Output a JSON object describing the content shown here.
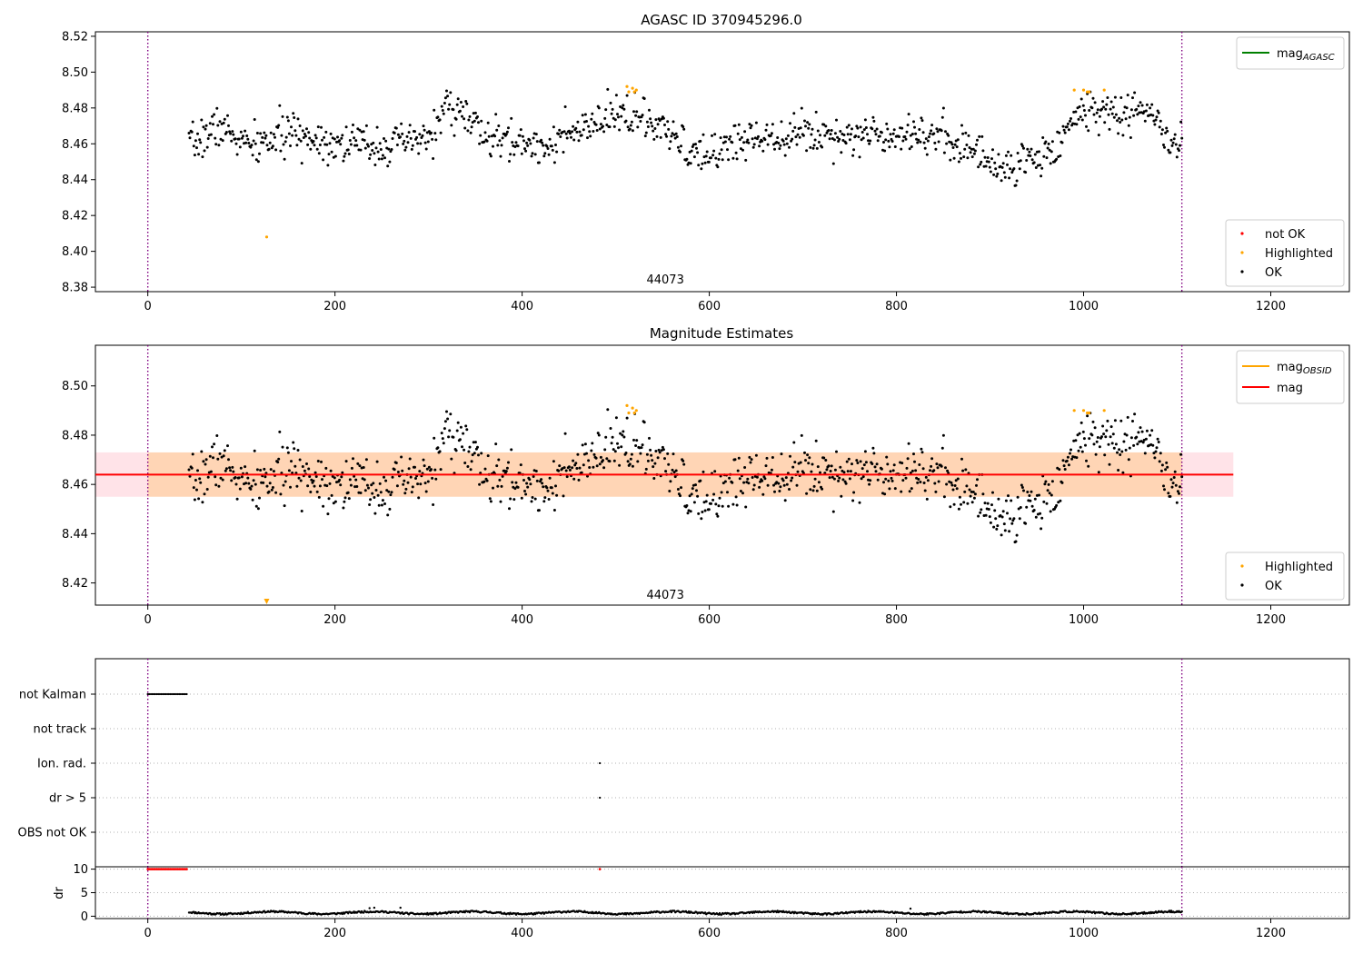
{
  "chart_data": [
    {
      "type": "scatter",
      "title": "AGASC ID 370945296.0",
      "xlim": [
        -56,
        1284
      ],
      "ylim": [
        8.3775,
        8.5225
      ],
      "xticks": [
        0,
        200,
        400,
        600,
        800,
        1000,
        1200
      ],
      "yticks": [
        8.38,
        8.4,
        8.42,
        8.44,
        8.46,
        8.48,
        8.5,
        8.52
      ],
      "ytick_decimals": 2,
      "grid": false,
      "vlines": [
        0,
        1105
      ],
      "annotation": {
        "text": "44073",
        "x": 553,
        "y": 8.382
      },
      "line_legend": {
        "placement": "top-right",
        "entries": [
          {
            "label": "mag",
            "sub": "AGASC",
            "color": "#008000"
          }
        ]
      },
      "marker_legend": {
        "placement": "bottom-right",
        "entries": [
          {
            "label": "not OK",
            "color": "#ff0000"
          },
          {
            "label": "Highlighted",
            "color": "#ffa500"
          },
          {
            "label": "OK",
            "color": "#000000"
          }
        ]
      },
      "points_ok": {
        "x_start": 44,
        "x_end": 1105,
        "count": 1030,
        "seed": 7
      },
      "highlighted": [
        [
          127,
          8.408
        ],
        [
          512,
          8.492
        ],
        [
          514,
          8.489
        ],
        [
          518,
          8.491
        ],
        [
          520,
          8.489
        ],
        [
          522,
          8.49
        ],
        [
          990,
          8.49
        ],
        [
          1000,
          8.49
        ],
        [
          1004,
          8.489
        ],
        [
          1006,
          8.489
        ],
        [
          1022,
          8.49
        ]
      ]
    },
    {
      "type": "scatter",
      "title": "Magnitude Estimates",
      "xlim": [
        -56,
        1284
      ],
      "ylim": [
        8.411,
        8.5165
      ],
      "xticks": [
        0,
        200,
        400,
        600,
        800,
        1000,
        1200
      ],
      "yticks": [
        8.42,
        8.44,
        8.46,
        8.48,
        8.5
      ],
      "ytick_decimals": 2,
      "grid": false,
      "vlines": [
        0,
        1105
      ],
      "annotation": {
        "text": "44073",
        "x": 553,
        "y": 8.4135
      },
      "mean_line": {
        "y": 8.464,
        "x": [
          -56,
          1160
        ],
        "color": "#ff0000"
      },
      "band_pink": {
        "y": [
          8.455,
          8.473
        ],
        "x": [
          -56,
          1160
        ]
      },
      "band_orange": {
        "y": [
          8.455,
          8.473
        ],
        "x": [
          0,
          1105
        ]
      },
      "line_legend": {
        "placement": "top-right",
        "entries": [
          {
            "label": "mag",
            "sub": "OBSID",
            "color": "#ffa500"
          },
          {
            "label": "mag",
            "sub": "",
            "color": "#ff0000"
          }
        ]
      },
      "marker_legend": {
        "placement": "bottom-right",
        "entries": [
          {
            "label": "Highlighted",
            "color": "#ffa500"
          },
          {
            "label": "OK",
            "color": "#000000"
          }
        ]
      },
      "points_ok": {
        "x_start": 44,
        "x_end": 1105,
        "count": 1030,
        "seed": 7
      },
      "highlighted": [
        [
          512,
          8.492
        ],
        [
          514,
          8.489
        ],
        [
          518,
          8.491
        ],
        [
          520,
          8.489
        ],
        [
          522,
          8.49
        ],
        [
          990,
          8.49
        ],
        [
          1000,
          8.49
        ],
        [
          1004,
          8.489
        ],
        [
          1006,
          8.489
        ],
        [
          1022,
          8.49
        ]
      ],
      "off_scale_marker": {
        "x": 127,
        "color": "#ffa500"
      }
    },
    {
      "type": "scatter",
      "title": "",
      "xlim": [
        -56,
        1284
      ],
      "flag_rows": [
        "not Kalman",
        "not track",
        "Ion. rad.",
        "dr > 5",
        "OBS not OK"
      ],
      "flag_points": {
        "not Kalman": {
          "x_range": [
            0,
            42
          ],
          "step": 1.6
        },
        "Ion. rad.": {
          "x": [
            483
          ]
        },
        "dr > 5": {
          "x": [
            483
          ]
        }
      },
      "vlines": [
        0,
        1105
      ],
      "grid": "dotted"
    },
    {
      "type": "scatter",
      "title": "",
      "ylabel": "dr",
      "xlim": [
        -56,
        1284
      ],
      "ylim": [
        -0.5,
        10.5
      ],
      "yticks": [
        0,
        5,
        10
      ],
      "ytick_decimals": 0,
      "xticks": [
        0,
        200,
        400,
        600,
        800,
        1000,
        1200
      ],
      "vlines": [
        0,
        1105
      ],
      "grid": "dotted",
      "red_points": {
        "x_range": [
          0,
          42
        ],
        "step": 1.6,
        "y": 10
      },
      "red_single": [
        [
          483,
          10
        ]
      ],
      "black_points": {
        "x_start": 44,
        "x_end": 1105,
        "count": 1030,
        "seed": 11
      },
      "black_outliers": [
        [
          237,
          1.7
        ],
        [
          242,
          1.8
        ],
        [
          270,
          1.8
        ],
        [
          815,
          1.6
        ]
      ]
    }
  ]
}
